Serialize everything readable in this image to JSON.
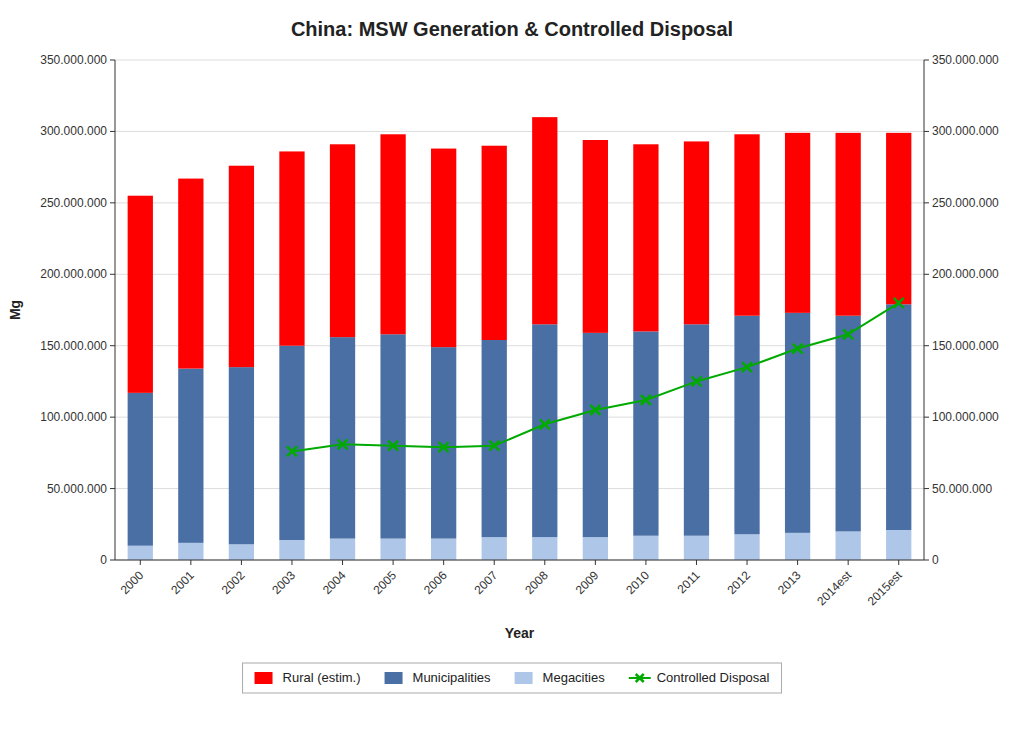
{
  "chart_data": {
    "type": "bar",
    "stacked": true,
    "title": "China: MSW Generation & Controlled Disposal",
    "x_label": "Year",
    "y_label": "Mg",
    "categories": [
      "2000",
      "2001",
      "2002",
      "2003",
      "2004",
      "2005",
      "2006",
      "2007",
      "2008",
      "2009",
      "2010",
      "2011",
      "2012",
      "2013",
      "2014est",
      "2015est"
    ],
    "series": [
      {
        "name": "Megacities",
        "color": "#aec6e8",
        "values": [
          10000000,
          12000000,
          11000000,
          14000000,
          15000000,
          15000000,
          15000000,
          16000000,
          16000000,
          16000000,
          17000000,
          17000000,
          18000000,
          19000000,
          20000000,
          21000000
        ]
      },
      {
        "name": "Municipalities",
        "color": "#4a6fa5",
        "values": [
          107000000,
          122000000,
          124000000,
          136000000,
          141000000,
          143000000,
          134000000,
          138000000,
          149000000,
          143000000,
          143000000,
          148000000,
          153000000,
          154000000,
          151000000,
          158000000
        ]
      },
      {
        "name": "Rural (estim.)",
        "color": "#ff0000",
        "values": [
          138000000,
          133000000,
          141000000,
          136000000,
          135000000,
          140000000,
          139000000,
          136000000,
          145000000,
          135000000,
          131000000,
          128000000,
          127000000,
          126000000,
          128000000,
          120000000
        ]
      },
      {
        "name": "Controlled Disposal",
        "type": "line",
        "axis": "y2",
        "color": "#00aa00",
        "marker": "x",
        "line_style": "solid",
        "values": [
          null,
          null,
          null,
          76000000,
          81000000,
          80000000,
          79000000,
          80000000,
          95000000,
          105000000,
          112000000,
          125000000,
          135000000,
          148000000,
          158000000,
          180000000
        ]
      }
    ],
    "ylim": [
      0,
      350000000
    ],
    "yticks": [
      0,
      {
        "value": 50000000,
        "label": "50.000.000"
      },
      {
        "value": 100000000,
        "label": "100.000.000"
      },
      {
        "value": 150000000,
        "label": "150.000.000"
      },
      {
        "value": 200000000,
        "label": "200.000.000"
      },
      {
        "value": 250000000,
        "label": "250.000.000"
      },
      {
        "value": 300000000,
        "label": "300.000.000"
      },
      {
        "value": 350000000,
        "label": "350.000.000"
      }
    ],
    "y2lim": [
      0,
      350000000
    ],
    "y2ticks": [
      0,
      {
        "value": 50000000,
        "label": "50.000.000"
      },
      {
        "value": 100000000,
        "label": "100.000.000"
      },
      {
        "value": 150000000,
        "label": "150.000.000"
      },
      {
        "value": 200000000,
        "label": "200.000.000"
      },
      {
        "value": 250000000,
        "label": "250.000.000"
      },
      {
        "value": 300000000,
        "label": "300.000.000"
      },
      {
        "value": 350000000,
        "label": "350.000.000"
      }
    ],
    "grid": true,
    "legend": "bottom"
  }
}
